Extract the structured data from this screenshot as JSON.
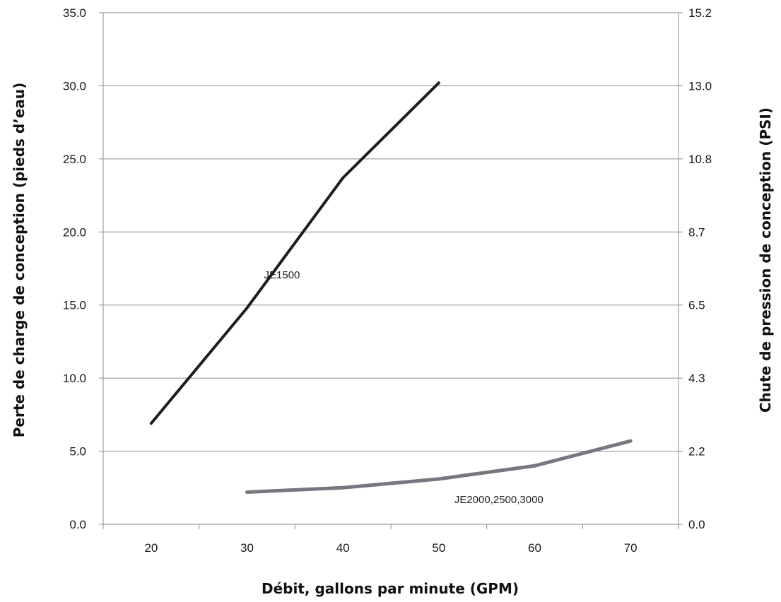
{
  "chart_data": {
    "type": "line",
    "xlabel": "Débit, gallons par minute (GPM)",
    "ylabel": "Perte de charge de conception (pieds d’eau)",
    "ylabel_right": "Chute de pression de conception (PSI)",
    "categories": [
      "20",
      "30",
      "40",
      "50",
      "60",
      "70"
    ],
    "x_tick_labels": [
      "20",
      "30",
      "40",
      "50",
      "60",
      "70"
    ],
    "ylim": [
      0,
      35
    ],
    "yticks": [
      "0.0",
      "5.0",
      "10.0",
      "15.0",
      "20.0",
      "25.0",
      "30.0",
      "35.0"
    ],
    "ylim_right": [
      0,
      15.2
    ],
    "yticks_right": [
      "0.0",
      "2.2",
      "4.3",
      "6.5",
      "8.7",
      "10.8",
      "13.0",
      "15.2"
    ],
    "grid": "horizontal",
    "series": [
      {
        "name": "JE1500",
        "color": "#231a1e",
        "x": [
          20,
          30,
          40,
          50
        ],
        "values": [
          6.9,
          14.8,
          23.7,
          30.2
        ]
      },
      {
        "name": "JE2000,2500,3000",
        "color": "#7a7680",
        "x": [
          30,
          40,
          50,
          60,
          70
        ],
        "values": [
          2.2,
          2.5,
          3.1,
          4.0,
          5.7
        ]
      }
    ]
  }
}
